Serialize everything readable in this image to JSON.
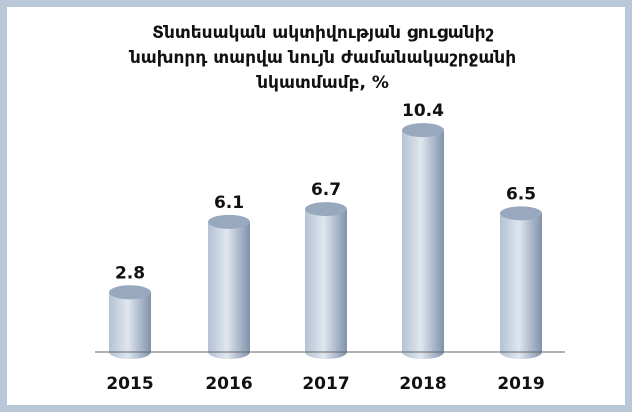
{
  "chart_data": {
    "type": "bar",
    "title_lines": [
      "Տնտեսական ակտիվության ցուցանիշ",
      "նախորդ տարվա նույն ժամանակաշրջանի",
      "նկատմամբ, %"
    ],
    "categories": [
      "2015",
      "2016",
      "2017",
      "2018",
      "2019"
    ],
    "values": [
      2.8,
      6.1,
      6.7,
      10.4,
      6.5
    ],
    "value_labels": [
      "2.8",
      "6.1",
      "6.7",
      "10.4",
      "6.5"
    ],
    "xlabel": "",
    "ylabel": "",
    "ylim": [
      0,
      12
    ],
    "grid": false,
    "bar_style": "3d-cylinder",
    "colors": {
      "bar_light": "#dfe6ef",
      "bar_mid": "#b4c2d4",
      "bar_dark": "#7f92ab",
      "bar_top": "#98a9bf",
      "frame": "#b9c8d8",
      "axis": "#666666"
    }
  }
}
